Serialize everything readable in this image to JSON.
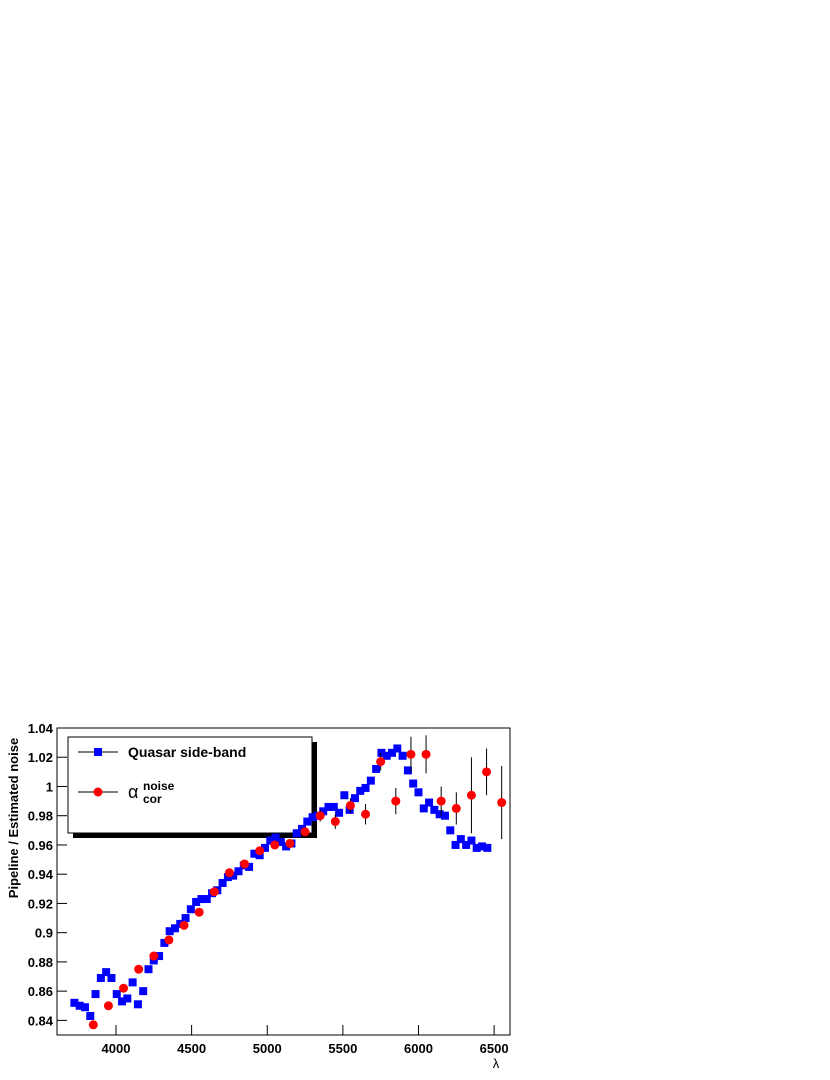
{
  "chart_data": {
    "type": "scatter",
    "x_label": "λ",
    "y_label": "Pipeline / Estimated noise",
    "xlim": [
      3610,
      6605
    ],
    "ylim": [
      0.83,
      1.04
    ],
    "xticks": [
      4000,
      4500,
      5000,
      5500,
      6000,
      6500
    ],
    "yticks": [
      0.84,
      0.86,
      0.88,
      0.9,
      0.92,
      0.94,
      0.96,
      0.98,
      1,
      1.02,
      1.04
    ],
    "legend": "top-left",
    "series": [
      {
        "name": "Quasar side-band",
        "color": "#0000ff",
        "marker": "square",
        "x": [
          3725,
          3760,
          3795,
          3830,
          3865,
          3900,
          3935,
          3970,
          4005,
          4040,
          4075,
          4110,
          4145,
          4180,
          4215,
          4250,
          4285,
          4320,
          4355,
          4390,
          4425,
          4460,
          4495,
          4530,
          4565,
          4600,
          4635,
          4670,
          4705,
          4740,
          4775,
          4810,
          4845,
          4880,
          4915,
          4950,
          4985,
          5020,
          5055,
          5090,
          5125,
          5160,
          5195,
          5230,
          5265,
          5300,
          5335,
          5370,
          5405,
          5440,
          5475,
          5510,
          5545,
          5580,
          5615,
          5650,
          5685,
          5720,
          5755,
          5790,
          5825,
          5860,
          5895,
          5930,
          5965,
          6000,
          6035,
          6070,
          6105,
          6140,
          6175,
          6210,
          6245,
          6280,
          6315,
          6350,
          6385,
          6420,
          6455
        ],
        "values": [
          0.852,
          0.85,
          0.849,
          0.843,
          0.858,
          0.869,
          0.873,
          0.869,
          0.858,
          0.853,
          0.855,
          0.866,
          0.851,
          0.86,
          0.875,
          0.881,
          0.884,
          0.893,
          0.901,
          0.903,
          0.906,
          0.91,
          0.916,
          0.921,
          0.923,
          0.923,
          0.927,
          0.929,
          0.934,
          0.938,
          0.939,
          0.942,
          0.946,
          0.945,
          0.954,
          0.953,
          0.958,
          0.963,
          0.965,
          0.962,
          0.959,
          0.961,
          0.968,
          0.971,
          0.976,
          0.979,
          0.98,
          0.983,
          0.986,
          0.986,
          0.982,
          0.994,
          0.984,
          0.992,
          0.997,
          0.999,
          1.004,
          1.012,
          1.023,
          1.021,
          1.023,
          1.026,
          1.021,
          1.011,
          1.002,
          0.996,
          0.985,
          0.989,
          0.984,
          0.981,
          0.98,
          0.97,
          0.96,
          0.964,
          0.96,
          0.963,
          0.958,
          0.959,
          0.958
        ]
      },
      {
        "name": "α",
        "name_sup": "noise",
        "name_sub": "cor",
        "color": "#ff0000",
        "marker": "circle",
        "x": [
          3850,
          3950,
          4050,
          4150,
          4250,
          4350,
          4450,
          4550,
          4650,
          4750,
          4850,
          4950,
          5050,
          5150,
          5250,
          5350,
          5450,
          5550,
          5650,
          5750,
          5850,
          5950,
          6050,
          6150,
          6250,
          6350,
          6450,
          6550
        ],
        "values": [
          0.837,
          0.85,
          0.862,
          0.875,
          0.884,
          0.895,
          0.905,
          0.914,
          0.928,
          0.941,
          0.947,
          0.956,
          0.96,
          0.961,
          0.969,
          0.98,
          0.976,
          0.987,
          0.981,
          1.017,
          0.99,
          1.022,
          1.022,
          0.99,
          0.985,
          0.994,
          1.01,
          0.989
        ],
        "errors": [
          0.002,
          0.002,
          0.002,
          0.002,
          0.002,
          0.002,
          0.002,
          0.002,
          0.002,
          0.002,
          0.002,
          0.002,
          0.002,
          0.003,
          0.003,
          0.004,
          0.005,
          0.005,
          0.007,
          0.006,
          0.009,
          0.012,
          0.013,
          0.01,
          0.011,
          0.026,
          0.016,
          0.025
        ]
      }
    ]
  }
}
